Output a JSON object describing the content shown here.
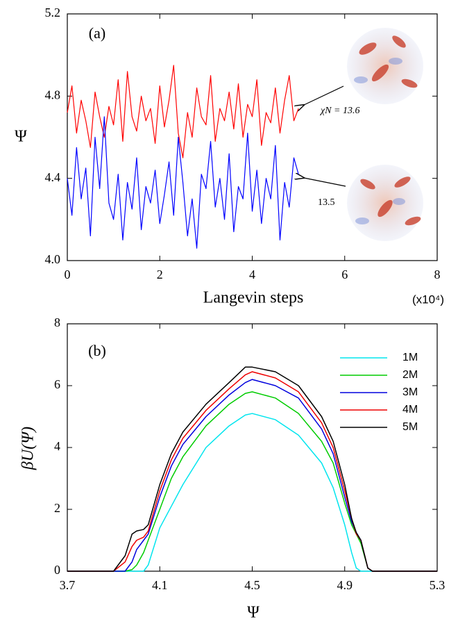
{
  "chart_data": [
    {
      "type": "line",
      "panel_label": "(a)",
      "xlabel": "Langevin steps",
      "ylabel": "Ψ",
      "x_multiplier": "(x10⁴)",
      "x": [
        0,
        0.1,
        0.2,
        0.3,
        0.4,
        0.5,
        0.6,
        0.7,
        0.8,
        0.9,
        1.0,
        1.1,
        1.2,
        1.3,
        1.4,
        1.5,
        1.6,
        1.7,
        1.8,
        1.9,
        2.0,
        2.1,
        2.2,
        2.3,
        2.4,
        2.5,
        2.6,
        2.7,
        2.8,
        2.9,
        3.0,
        3.1,
        3.2,
        3.3,
        3.4,
        3.5,
        3.6,
        3.7,
        3.8,
        3.9,
        4.0,
        4.1,
        4.2,
        4.3,
        4.4,
        4.5,
        4.6,
        4.7,
        4.8,
        4.9,
        5.0
      ],
      "series": [
        {
          "name": "χN = 13.6",
          "color": "#ff0000",
          "values": [
            4.72,
            4.85,
            4.62,
            4.78,
            4.68,
            4.55,
            4.82,
            4.7,
            4.6,
            4.75,
            4.66,
            4.88,
            4.58,
            4.92,
            4.7,
            4.63,
            4.8,
            4.68,
            4.74,
            4.57,
            4.85,
            4.65,
            4.78,
            4.95,
            4.62,
            4.5,
            4.72,
            4.6,
            4.84,
            4.7,
            4.66,
            4.9,
            4.58,
            4.74,
            4.68,
            4.82,
            4.64,
            4.86,
            4.6,
            4.76,
            4.7,
            4.88,
            4.56,
            4.72,
            4.67,
            4.84,
            4.62,
            4.78,
            4.9,
            4.68,
            4.74
          ]
        },
        {
          "name": "13.5",
          "color": "#0000ff",
          "values": [
            4.4,
            4.22,
            4.55,
            4.3,
            4.45,
            4.12,
            4.6,
            4.35,
            4.7,
            4.28,
            4.2,
            4.42,
            4.1,
            4.38,
            4.25,
            4.5,
            4.15,
            4.36,
            4.28,
            4.44,
            4.18,
            4.32,
            4.48,
            4.22,
            4.6,
            4.38,
            4.12,
            4.3,
            4.06,
            4.42,
            4.35,
            4.58,
            4.26,
            4.4,
            4.2,
            4.52,
            4.14,
            4.36,
            4.3,
            4.62,
            4.24,
            4.44,
            4.18,
            4.4,
            4.3,
            4.56,
            4.1,
            4.38,
            4.26,
            4.5,
            4.42
          ]
        }
      ],
      "xlim": [
        0,
        8
      ],
      "xticks": [
        0,
        2,
        4,
        6,
        8
      ],
      "ylim": [
        4.0,
        5.2
      ],
      "yticks": [
        {
          "value": 4.0,
          "label": "4.0"
        },
        4.4,
        4.8,
        5.2
      ]
    },
    {
      "type": "line",
      "panel_label": "(b)",
      "xlabel": "Ψ",
      "ylabel": "βU(Ψ)",
      "legend": "upper right",
      "x": [
        3.7,
        3.9,
        3.95,
        3.98,
        4.0,
        4.03,
        4.05,
        4.1,
        4.15,
        4.2,
        4.3,
        4.4,
        4.47,
        4.5,
        4.6,
        4.7,
        4.8,
        4.85,
        4.9,
        4.93,
        4.95,
        4.97,
        5.0,
        5.02,
        5.3
      ],
      "series": [
        {
          "name": "1M",
          "color": "#00e5ee",
          "values": [
            0,
            0,
            0,
            0,
            0,
            0,
            0.2,
            1.4,
            2.1,
            2.8,
            4.0,
            4.7,
            5.05,
            5.1,
            4.9,
            4.4,
            3.5,
            2.7,
            1.5,
            0.6,
            0.1,
            0,
            0,
            0,
            0
          ]
        },
        {
          "name": "2M",
          "color": "#00cc00",
          "values": [
            0,
            0,
            0,
            0.05,
            0.2,
            0.6,
            1.0,
            2.0,
            3.0,
            3.7,
            4.7,
            5.4,
            5.75,
            5.8,
            5.6,
            5.1,
            4.2,
            3.5,
            2.2,
            1.5,
            1.2,
            0.9,
            0.1,
            0,
            0
          ]
        },
        {
          "name": "3M",
          "color": "#0000dd",
          "values": [
            0,
            0,
            0,
            0.3,
            0.7,
            1.0,
            1.2,
            2.4,
            3.4,
            4.1,
            5.0,
            5.7,
            6.1,
            6.2,
            6.0,
            5.6,
            4.6,
            3.8,
            2.4,
            1.6,
            1.25,
            1.0,
            0.1,
            0,
            0
          ]
        },
        {
          "name": "4M",
          "color": "#ee0000",
          "values": [
            0,
            0,
            0.3,
            0.8,
            1.0,
            1.1,
            1.3,
            2.6,
            3.6,
            4.3,
            5.2,
            5.9,
            6.35,
            6.45,
            6.25,
            5.8,
            4.8,
            4.0,
            2.6,
            1.7,
            1.2,
            1.0,
            0.1,
            0,
            0
          ]
        },
        {
          "name": "5M",
          "color": "#000000",
          "values": [
            0,
            0,
            0.5,
            1.2,
            1.3,
            1.35,
            1.5,
            2.8,
            3.8,
            4.5,
            5.4,
            6.1,
            6.6,
            6.6,
            6.45,
            6.0,
            5.0,
            4.2,
            2.8,
            1.7,
            1.25,
            1.0,
            0.1,
            0,
            0
          ]
        }
      ],
      "xlim": [
        3.7,
        5.3
      ],
      "xticks": [
        3.7,
        4.1,
        4.5,
        4.9,
        5.3
      ],
      "ylim": [
        0,
        8
      ],
      "yticks": [
        0,
        2,
        4,
        6,
        8
      ]
    }
  ]
}
